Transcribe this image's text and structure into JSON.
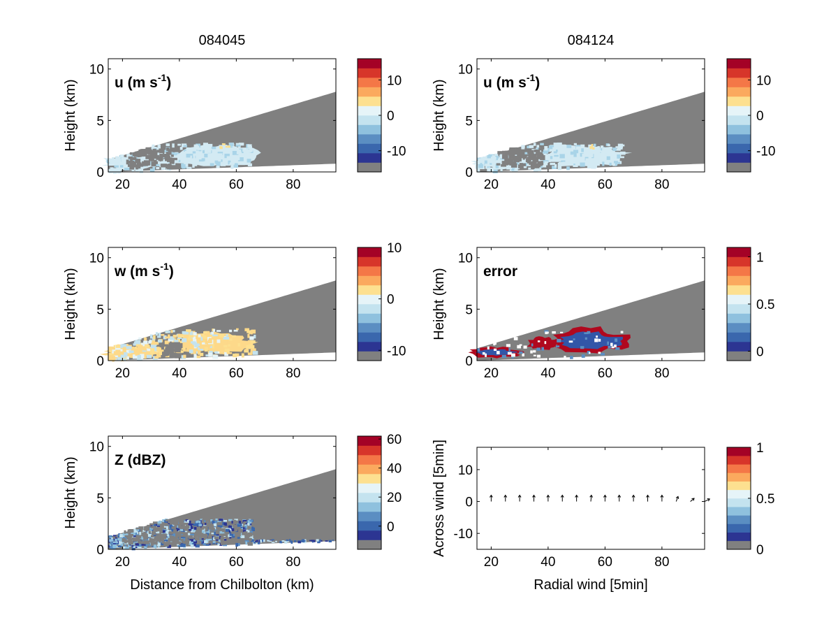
{
  "column_titles": [
    "084045",
    "084124"
  ],
  "palette": [
    "#808080",
    "#2c3592",
    "#3a67ad",
    "#5b8ec2",
    "#8fc1de",
    "#c4e3ef",
    "#e6f4f8",
    "#fde090",
    "#fba95e",
    "#f47747",
    "#d7352a",
    "#a40226"
  ],
  "colors": {
    "mask_gray": "#808080",
    "u_field": "#d3eaf3",
    "u_field_alt": "#a9d4e8",
    "w_field": "#fdd98a",
    "error_edge": "#b0081e",
    "error_core": "#3256a8",
    "z_field": "#5b8ec2",
    "z_field_light": "#c4e3ef"
  },
  "chart_data": [
    {
      "id": "u_084045",
      "type": "heatmap",
      "annotation": "u (m s",
      "annotation_sup": "-1",
      "xlabel": "",
      "ylabel": "Height (km)",
      "xlim": [
        15,
        95
      ],
      "ylim": [
        0,
        11
      ],
      "xticks": [
        "20",
        "40",
        "60",
        "80"
      ],
      "yticks": [
        "0",
        "5",
        "10"
      ],
      "colorbar": {
        "ticks": [
          "10",
          "0",
          "-10"
        ],
        "range": [
          -16,
          16
        ]
      }
    },
    {
      "id": "u_084124",
      "type": "heatmap",
      "annotation": "u (m s",
      "annotation_sup": "-1",
      "xlabel": "",
      "ylabel": "Height (km)",
      "xlim": [
        15,
        95
      ],
      "ylim": [
        0,
        11
      ],
      "xticks": [
        "20",
        "40",
        "60",
        "80"
      ],
      "yticks": [
        "0",
        "5",
        "10"
      ],
      "colorbar": {
        "ticks": [
          "10",
          "0",
          "-10"
        ],
        "range": [
          -16,
          16
        ]
      }
    },
    {
      "id": "w_084045",
      "type": "heatmap",
      "annotation": "w (m s",
      "annotation_sup": "-1",
      "xlabel": "",
      "ylabel": "Height (km)",
      "xlim": [
        15,
        95
      ],
      "ylim": [
        0,
        11
      ],
      "xticks": [
        "20",
        "40",
        "60",
        "80"
      ],
      "yticks": [
        "0",
        "5",
        "10"
      ],
      "colorbar": {
        "ticks": [
          "10",
          "0",
          "-10"
        ],
        "range": [
          -12,
          10
        ]
      }
    },
    {
      "id": "error_084124",
      "type": "heatmap",
      "annotation": "error",
      "annotation_sup": "",
      "xlabel": "",
      "ylabel": "Height (km)",
      "xlim": [
        15,
        95
      ],
      "ylim": [
        0,
        11
      ],
      "xticks": [
        "20",
        "40",
        "60",
        "80"
      ],
      "yticks": [
        "0",
        "5",
        "10"
      ],
      "colorbar": {
        "ticks": [
          "1",
          "0.5",
          "0"
        ],
        "range": [
          -0.1,
          1.1
        ]
      }
    },
    {
      "id": "z_084045",
      "type": "heatmap",
      "annotation": "Z (dBZ)",
      "annotation_sup": "",
      "xlabel": "Distance from Chilbolton (km)",
      "ylabel": "Height (km)",
      "xlim": [
        15,
        95
      ],
      "ylim": [
        0,
        11
      ],
      "xticks": [
        "20",
        "40",
        "60",
        "80"
      ],
      "yticks": [
        "0",
        "5",
        "10"
      ],
      "colorbar": {
        "ticks": [
          "60",
          "40",
          "20",
          "0"
        ],
        "range": [
          -16,
          62
        ]
      }
    },
    {
      "id": "wind_vectors",
      "type": "scatter",
      "annotation": "",
      "annotation_sup": "",
      "xlabel": "Radial wind [5min]",
      "ylabel": "Across wind [5min]",
      "xlim": [
        15,
        95
      ],
      "ylim": [
        -15,
        17
      ],
      "xticks": [
        "20",
        "40",
        "60",
        "80"
      ],
      "yticks": [
        "-10",
        "0",
        "10"
      ],
      "x": [
        20,
        25,
        30,
        35,
        40,
        45,
        50,
        55,
        60,
        65,
        70,
        75,
        80,
        85,
        90,
        95
      ],
      "y": [
        0,
        0,
        0,
        0,
        0,
        0,
        0,
        0,
        0,
        0,
        0,
        0,
        0,
        0,
        0,
        0
      ],
      "u": [
        0,
        0,
        0,
        0,
        0,
        0,
        0,
        0.1,
        0,
        0,
        0,
        0,
        0,
        0.3,
        0.6,
        0.8
      ],
      "v": [
        1,
        1,
        1,
        1,
        1,
        1,
        1,
        1,
        1,
        1,
        1,
        1,
        1,
        0.8,
        0.5,
        0.4
      ],
      "colorbar": {
        "ticks": [
          "1",
          "0.5",
          "0"
        ],
        "range": [
          0,
          1
        ]
      }
    }
  ]
}
